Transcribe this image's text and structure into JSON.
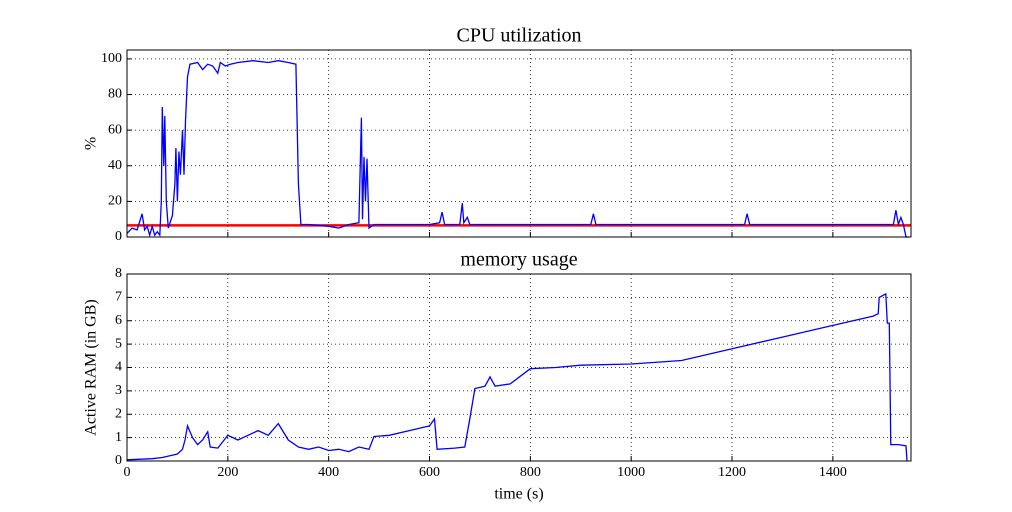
{
  "chart_data": [
    {
      "type": "line",
      "title": "CPU utilization",
      "y_label": "%",
      "color": "#0000ff",
      "grid": true,
      "xlim": [
        0,
        1555
      ],
      "ylim": [
        0,
        105
      ],
      "xticks": [
        0,
        200,
        400,
        600,
        800,
        1000,
        1200,
        1400
      ],
      "yticks": [
        0,
        20,
        40,
        60,
        80,
        100
      ],
      "hline": {
        "value": 6.5,
        "color": "#ff0000"
      },
      "x": [
        0,
        10,
        20,
        30,
        35,
        40,
        45,
        50,
        55,
        60,
        65,
        68,
        70,
        73,
        75,
        78,
        82,
        90,
        95,
        97,
        100,
        103,
        106,
        110,
        113,
        116,
        120,
        125,
        140,
        150,
        160,
        170,
        180,
        185,
        195,
        205,
        220,
        250,
        280,
        300,
        320,
        335,
        340,
        345,
        360,
        400,
        420,
        440,
        460,
        462,
        465,
        467,
        470,
        473,
        476,
        480,
        490,
        600,
        620,
        625,
        630,
        660,
        665,
        668,
        675,
        680,
        920,
        925,
        930,
        1225,
        1230,
        1235,
        1520,
        1525,
        1530,
        1535,
        1540,
        1545,
        1550
      ],
      "values": [
        2,
        5,
        4,
        13,
        4,
        6,
        1,
        6,
        1,
        3,
        1,
        20,
        73,
        40,
        68,
        20,
        5,
        12,
        30,
        50,
        20,
        48,
        35,
        60,
        35,
        65,
        90,
        97,
        98,
        94,
        97,
        96,
        92,
        98,
        96,
        97,
        98,
        99,
        98,
        99,
        98,
        97,
        30,
        7,
        7,
        6,
        5,
        7,
        8,
        32,
        67,
        10,
        45,
        20,
        44,
        5,
        7,
        7,
        8,
        14,
        7,
        7,
        19,
        8,
        11,
        7,
        7,
        13,
        7,
        7,
        13,
        7,
        7,
        15,
        7,
        11,
        7,
        0,
        0
      ]
    },
    {
      "type": "line",
      "title": "memory usage",
      "x_label": "time (s)",
      "y_label": "Active RAM (in GB)",
      "color": "#0000ff",
      "grid": true,
      "xlim": [
        0,
        1555
      ],
      "ylim": [
        0,
        8
      ],
      "xticks": [
        0,
        200,
        400,
        600,
        800,
        1000,
        1200,
        1400
      ],
      "yticks": [
        0,
        1,
        2,
        3,
        4,
        5,
        6,
        7,
        8
      ],
      "x": [
        0,
        50,
        70,
        100,
        110,
        115,
        120,
        130,
        140,
        150,
        160,
        165,
        180,
        200,
        220,
        240,
        260,
        280,
        300,
        320,
        340,
        360,
        380,
        400,
        420,
        440,
        460,
        480,
        490,
        520,
        560,
        600,
        610,
        615,
        650,
        670,
        680,
        690,
        710,
        720,
        730,
        760,
        800,
        850,
        900,
        1000,
        1100,
        1200,
        1300,
        1400,
        1480,
        1490,
        1492,
        1505,
        1508,
        1512,
        1515,
        1530,
        1545,
        1547
      ],
      "values": [
        0.05,
        0.1,
        0.15,
        0.3,
        0.5,
        0.9,
        1.5,
        1.0,
        0.7,
        0.9,
        1.25,
        0.6,
        0.55,
        1.1,
        0.9,
        1.1,
        1.3,
        1.1,
        1.6,
        0.9,
        0.6,
        0.5,
        0.6,
        0.45,
        0.5,
        0.4,
        0.6,
        0.5,
        1.05,
        1.1,
        1.3,
        1.5,
        1.8,
        0.5,
        0.55,
        0.6,
        1.8,
        3.1,
        3.2,
        3.6,
        3.2,
        3.3,
        3.95,
        4.0,
        4.1,
        4.15,
        4.3,
        4.8,
        5.3,
        5.8,
        6.2,
        6.3,
        7.0,
        7.15,
        5.9,
        5.9,
        0.7,
        0.7,
        0.65,
        0
      ]
    }
  ]
}
